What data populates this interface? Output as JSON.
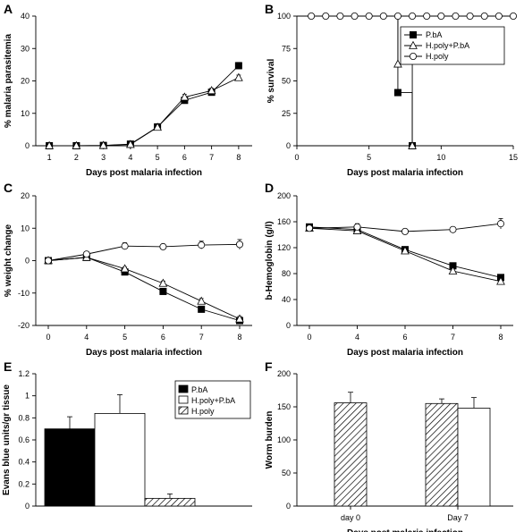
{
  "panels": [
    {
      "letter": "A"
    },
    {
      "letter": "B"
    },
    {
      "letter": "C"
    },
    {
      "letter": "D"
    },
    {
      "letter": "E"
    },
    {
      "letter": "F"
    }
  ],
  "colors": {
    "black": "#000000",
    "white": "#ffffff",
    "axis": "#000000"
  },
  "chart_data": [
    {
      "id": "A",
      "type": "line",
      "xlabel": "Days post malaria infection",
      "ylabel": "% malaria parasitemia",
      "xlim": [
        0.5,
        8.5
      ],
      "ylim": [
        0,
        40
      ],
      "xticks": [
        1,
        2,
        3,
        4,
        5,
        6,
        7,
        8
      ],
      "yticks": [
        0,
        10,
        20,
        30,
        40
      ],
      "series": [
        {
          "marker": "square-filled",
          "x": [
            1,
            2,
            3,
            4,
            5,
            6,
            7,
            8
          ],
          "y": [
            0,
            0,
            0.1,
            0.5,
            5.8,
            14,
            16.5,
            24.7
          ],
          "err": [
            0,
            0,
            0,
            0.3,
            0.5,
            0.8,
            0.7,
            1.0
          ]
        },
        {
          "marker": "triangle-open",
          "x": [
            1,
            2,
            3,
            4,
            5,
            6,
            7,
            8
          ],
          "y": [
            0,
            0,
            0.1,
            0.4,
            5.7,
            15,
            17,
            21
          ],
          "err": [
            0,
            0,
            0,
            0.3,
            0.5,
            0.8,
            0.7,
            0.8
          ]
        }
      ]
    },
    {
      "id": "B",
      "type": "line",
      "xlabel": "Days post malaria infection",
      "ylabel": "% survival",
      "xlim": [
        0,
        15
      ],
      "ylim": [
        0,
        100
      ],
      "xticks": [
        0,
        5,
        10,
        15
      ],
      "yticks": [
        0,
        25,
        50,
        75,
        100
      ],
      "legend": {
        "position": "top-right",
        "entries": [
          {
            "label": "P.bA",
            "marker": "square-filled"
          },
          {
            "label": "H.poly+P.bA",
            "marker": "triangle-open"
          },
          {
            "label": "H.poly",
            "marker": "circle-open"
          }
        ]
      },
      "series": [
        {
          "name": "P.bA",
          "marker": "square-filled",
          "x": [
            7,
            8
          ],
          "y": [
            41,
            0
          ],
          "steps": [
            [
              0,
              100
            ],
            [
              7,
              100
            ],
            [
              7,
              41
            ],
            [
              8,
              41
            ],
            [
              8,
              0
            ]
          ]
        },
        {
          "name": "H.poly+P.bA",
          "marker": "triangle-open",
          "x": [
            7,
            8
          ],
          "y": [
            63,
            0
          ],
          "steps": [
            [
              7,
              100
            ],
            [
              7,
              63
            ],
            [
              8,
              63
            ],
            [
              8,
              0
            ]
          ]
        },
        {
          "name": "H.poly",
          "marker": "circle-open",
          "x": [
            1,
            2,
            3,
            4,
            5,
            6,
            7,
            8,
            9,
            10,
            11,
            12,
            13,
            14,
            15
          ],
          "y": [
            100,
            100,
            100,
            100,
            100,
            100,
            100,
            100,
            100,
            100,
            100,
            100,
            100,
            100,
            100
          ]
        }
      ]
    },
    {
      "id": "C",
      "type": "line",
      "xlabel": "Days post malaria infection",
      "ylabel": "% weight change",
      "categories": [
        "0",
        "4",
        "5",
        "6",
        "7",
        "8"
      ],
      "ylim": [
        -20,
        20
      ],
      "yticks": [
        -20,
        -10,
        0,
        10,
        20
      ],
      "series": [
        {
          "marker": "square-filled",
          "y": [
            0,
            1,
            -3.5,
            -9.5,
            -15,
            -18.5
          ],
          "err": [
            0.5,
            0.5,
            0.5,
            0.5,
            0.5,
            0.5
          ]
        },
        {
          "marker": "triangle-open",
          "y": [
            0,
            1,
            -2.5,
            -7,
            -12.5,
            -18
          ],
          "err": [
            0.5,
            0.5,
            0.5,
            0.7,
            0.8,
            0.8
          ]
        },
        {
          "marker": "circle-open",
          "y": [
            0,
            2,
            4.5,
            4.3,
            4.8,
            5
          ],
          "err": [
            0.5,
            0.5,
            1,
            0.5,
            1.2,
            1.5
          ]
        }
      ]
    },
    {
      "id": "D",
      "type": "line",
      "xlabel": "Days post malaria infection",
      "ylabel": "b-Hemoglobin (g/l)",
      "categories": [
        "0",
        "4",
        "6",
        "7",
        "8"
      ],
      "ylim": [
        0,
        200
      ],
      "yticks": [
        0,
        40,
        80,
        120,
        160,
        200
      ],
      "series": [
        {
          "marker": "square-filled",
          "y": [
            152,
            148,
            117,
            92,
            74
          ],
          "err": [
            3,
            3,
            3,
            3,
            3
          ]
        },
        {
          "marker": "triangle-open",
          "y": [
            150,
            146,
            115,
            84,
            68
          ],
          "err": [
            3,
            4,
            3,
            3,
            4
          ]
        },
        {
          "marker": "circle-open",
          "y": [
            150,
            152,
            145,
            148,
            157
          ],
          "err": [
            3,
            5,
            3,
            3,
            8
          ]
        }
      ]
    },
    {
      "id": "E",
      "type": "bar",
      "ylabel": "Evans blue units/gr tissue",
      "ylim": [
        0,
        1.2
      ],
      "yticks": [
        0,
        0.2,
        0.4,
        0.6,
        0.8,
        1.0,
        1.2
      ],
      "ytick_labels": [
        "0",
        "0.2",
        "0.4",
        "0.6",
        "0.8",
        "1",
        "1.2"
      ],
      "legend": {
        "position": "top-right",
        "entries": [
          {
            "label": "P.bA",
            "fill": "black"
          },
          {
            "label": "H.poly+P.bA",
            "fill": "white"
          },
          {
            "label": "H.poly",
            "fill": "hatch"
          }
        ]
      },
      "bars": [
        {
          "fill": "black",
          "value": 0.7,
          "err": 0.11
        },
        {
          "fill": "white",
          "value": 0.84,
          "err": 0.17
        },
        {
          "fill": "hatch",
          "value": 0.07,
          "err": 0.04
        }
      ]
    },
    {
      "id": "F",
      "type": "bar",
      "xlabel": "Days post malaria infection",
      "ylabel": "Worm burden",
      "categories": [
        "day 0",
        "Day 7"
      ],
      "ylim": [
        0,
        200
      ],
      "yticks": [
        0,
        50,
        100,
        150,
        200
      ],
      "groups": [
        {
          "bars": [
            {
              "fill": "hatch",
              "value": 156,
              "err": 16
            }
          ]
        },
        {
          "bars": [
            {
              "fill": "hatch",
              "value": 155,
              "err": 7
            },
            {
              "fill": "white",
              "value": 148,
              "err": 16
            }
          ]
        }
      ]
    }
  ]
}
